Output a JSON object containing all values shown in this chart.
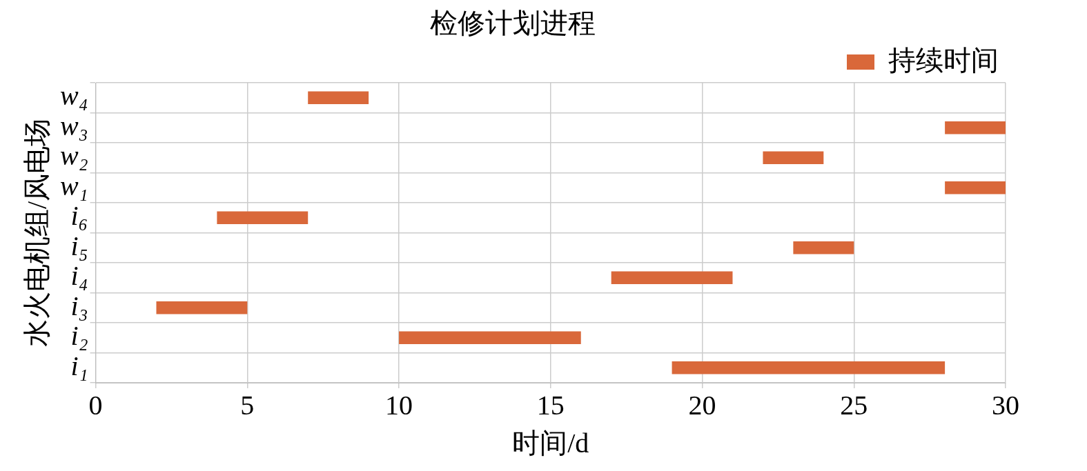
{
  "chart_data": {
    "type": "bar",
    "orientation": "horizontal",
    "title": "检修计划进程",
    "xlabel": "时间/d",
    "ylabel": "水火电机组/风电场",
    "categories": [
      "w₄",
      "w₃",
      "w₂",
      "w₁",
      "i₆",
      "i₅",
      "i₄",
      "i₃",
      "i₂",
      "i₁"
    ],
    "series": [
      {
        "name": "持续时间",
        "color": "#d9683a",
        "values": [
          2,
          2,
          2,
          2,
          3,
          2,
          4,
          3,
          6,
          9
        ],
        "base": [
          7,
          28,
          22,
          28,
          4,
          23,
          17,
          2,
          10,
          19
        ]
      }
    ],
    "xlim": [
      0,
      30
    ],
    "xticks": [
      0,
      5,
      10,
      15,
      20,
      25,
      30
    ],
    "grid": true,
    "legend": "top right"
  }
}
